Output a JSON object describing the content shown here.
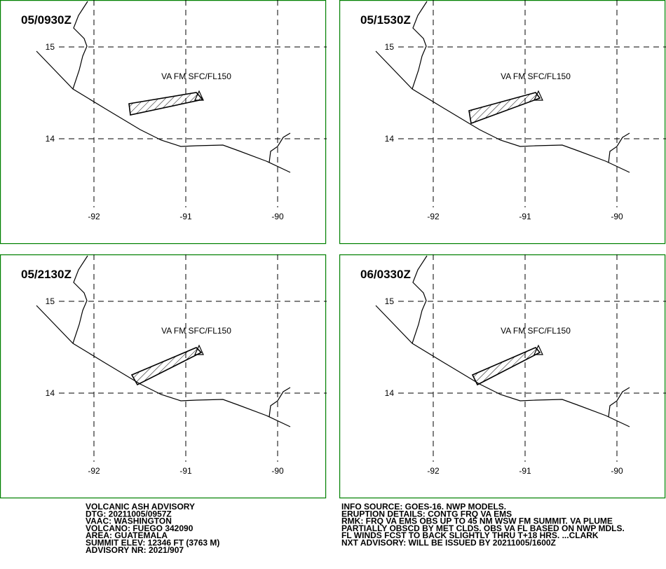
{
  "panels": [
    {
      "time": "05/0930Z",
      "label": "VA FM SFC/FL150"
    },
    {
      "time": "05/1530Z",
      "label": "VA FM SFC/FL150"
    },
    {
      "time": "05/2130Z",
      "label": "VA FM SFC/FL150"
    },
    {
      "time": "06/0330Z",
      "label": "VA FM SFC/FL150"
    }
  ],
  "lat_ticks": [
    15,
    14
  ],
  "lon_ticks": [
    -92,
    -91,
    -90
  ],
  "advisory_left": [
    "VOLCANIC ASH ADVISORY",
    "DTG: 20211005/0957Z",
    "VAAC: WASHINGTON",
    "VOLCANO: FUEGO 342090",
    "AREA: GUATEMALA",
    "SUMMIT ELEV: 12346 FT (3763 M)",
    "ADVISORY NR: 2021/907"
  ],
  "advisory_right": [
    "INFO SOURCE: GOES-16. NWP MODELS.",
    "ERUPTION DETAILS: CONTG FRQ VA EMS",
    "RMK: FRQ VA EMS OBS UP TO 45 NM WSW FM SUMMIT. VA PLUME",
    "PARTIALLY OBSCD BY MET CLDS. OBS VA FL BASED ON NWP MDLS.",
    "FL WINDS FCST TO BACK SLIGHTLY THRU T+18 HRS. ...CLARK",
    "NXT ADVISORY: WILL BE ISSUED BY 20211005/1600Z"
  ]
}
